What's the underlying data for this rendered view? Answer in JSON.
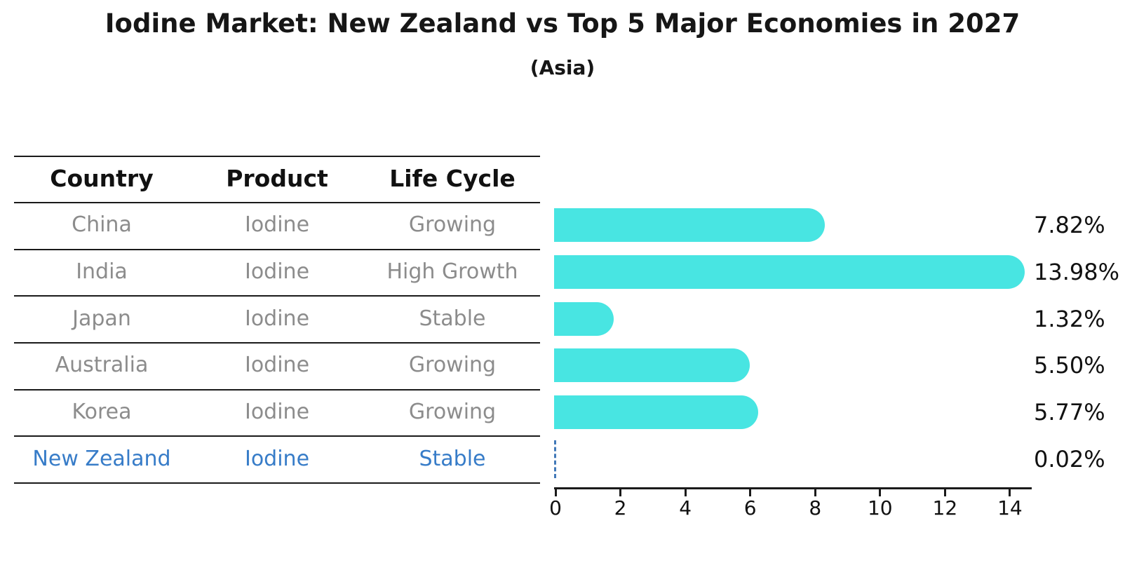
{
  "page": {
    "title": "Iodine Market: New Zealand vs Top 5 Major Economies in 2027",
    "subtitle": "(Asia)"
  },
  "table": {
    "headers": [
      "Country",
      "Product",
      "Life Cycle"
    ],
    "rows": [
      {
        "country": "China",
        "product": "Iodine",
        "life_cycle": "Growing",
        "highlighted": false
      },
      {
        "country": "India",
        "product": "Iodine",
        "life_cycle": "High Growth",
        "highlighted": false
      },
      {
        "country": "Japan",
        "product": "Iodine",
        "life_cycle": "Stable",
        "highlighted": false
      },
      {
        "country": "Australia",
        "product": "Iodine",
        "life_cycle": "Growing",
        "highlighted": false
      },
      {
        "country": "Korea",
        "product": "Iodine",
        "life_cycle": "Growing",
        "highlighted": false
      },
      {
        "country": "New Zealand",
        "product": "Iodine",
        "life_cycle": "Stable",
        "highlighted": true
      }
    ]
  },
  "chart_data": {
    "type": "bar",
    "orientation": "horizontal",
    "title": "Iodine Market: New Zealand vs Top 5 Major Economies in 2027",
    "subtitle": "(Asia)",
    "categories": [
      "China",
      "India",
      "Japan",
      "Australia",
      "Korea",
      "New Zealand"
    ],
    "values": [
      7.82,
      13.98,
      1.32,
      5.5,
      5.77,
      0.02
    ],
    "value_labels": [
      "7.82%",
      "13.98%",
      "1.32%",
      "5.50%",
      "5.77%",
      "0.02%"
    ],
    "bar_styles": [
      "solid",
      "solid",
      "solid",
      "solid",
      "solid",
      "dashed-outline"
    ],
    "x_ticks": [
      0,
      2,
      4,
      6,
      8,
      10,
      12,
      14
    ],
    "xlim": [
      0,
      14.7
    ],
    "grid": false,
    "legend": false,
    "xlabel": "",
    "ylabel": "",
    "colors": {
      "bar": "#48e5e2",
      "highlight_dashed": "#4279b8",
      "highlight_text": "#377cc8"
    }
  },
  "colors": {
    "text": "#111111",
    "muted_row_text": "#8c8c8c",
    "highlight_blue": "#377cc8",
    "bar_cyan": "#48e5e2",
    "axis_black": "#1a1a1a"
  }
}
